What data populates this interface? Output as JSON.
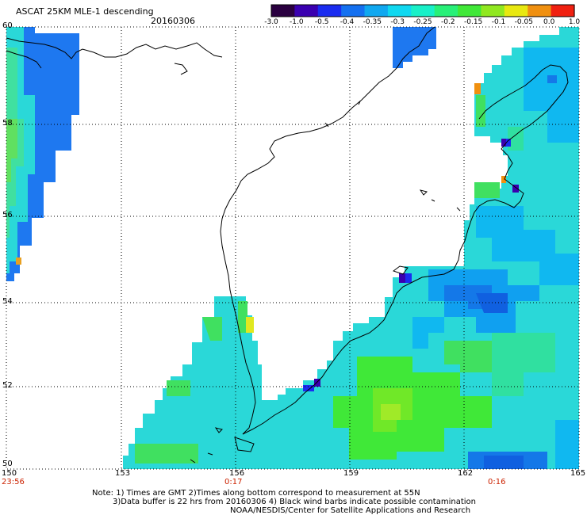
{
  "header": {
    "title": "ASCAT 25KM MLE-1 descending",
    "date": "20160306"
  },
  "colorbar": {
    "ticks": [
      "-3.0",
      "-1.0",
      "-0.5",
      "-0.4",
      "-0.35",
      "-0.3",
      "-0.25",
      "-0.2",
      "-0.15",
      "-0.1",
      "-0.05",
      "0.0",
      "1.0"
    ],
    "colors": [
      "#2a0040",
      "#3a00b0",
      "#1a2cf0",
      "#1470f0",
      "#10a8f0",
      "#10d8f0",
      "#18f0c8",
      "#28f078",
      "#40e838",
      "#90e820",
      "#e8e810",
      "#f09010",
      "#f02010"
    ]
  },
  "map": {
    "lat_labels": [
      "60",
      "58",
      "56",
      "54",
      "52",
      "50"
    ],
    "lon_labels": [
      "150",
      "153",
      "156",
      "159",
      "162",
      "165"
    ],
    "times": [
      {
        "label": "23:56"
      },
      {
        "label": "0:17"
      },
      {
        "label": "0:16"
      }
    ]
  },
  "notes": {
    "line1": "Note: 1) Times are GMT 2)Times along bottom correspond to measurement at 55N",
    "line2": "3)Data buffer is 22 hrs from 20160306 4) Black wind barbs indicate possible contamination",
    "line3": "NOAA/NESDIS/Center for Satellite Applications and Research"
  }
}
